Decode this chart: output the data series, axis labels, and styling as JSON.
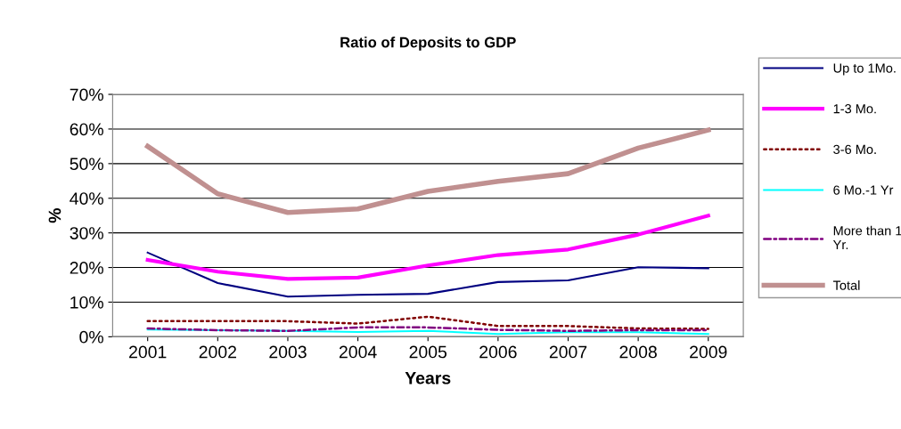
{
  "chart_data": {
    "type": "line",
    "title": "Ratio of Deposits to GDP",
    "xlabel": "Years",
    "ylabel": "%",
    "categories": [
      "2001",
      "2002",
      "2003",
      "2004",
      "2005",
      "2006",
      "2007",
      "2008",
      "2009"
    ],
    "ylim": [
      0,
      70
    ],
    "yticks": [
      {
        "value": 0,
        "label": "0%"
      },
      {
        "value": 10,
        "label": "10%"
      },
      {
        "value": 20,
        "label": "20%"
      },
      {
        "value": 30,
        "label": "30%"
      },
      {
        "value": 40,
        "label": "40%"
      },
      {
        "value": 50,
        "label": "50%"
      },
      {
        "value": 60,
        "label": "60%"
      },
      {
        "value": 70,
        "label": "70%"
      }
    ],
    "grid": "y",
    "legend": "right",
    "marker": "none",
    "series": [
      {
        "name": "Up to 1Mo.",
        "color": "#000080",
        "line_style": "solid",
        "values": [
          24.3,
          15.5,
          11.6,
          12.1,
          12.4,
          15.8,
          16.3,
          20.1,
          19.8
        ]
      },
      {
        "name": "1-3 Mo.",
        "color": "#ff00ff",
        "line_style": "solid",
        "values": [
          22.2,
          18.8,
          16.7,
          17.1,
          20.6,
          23.6,
          25.2,
          29.5,
          35.0
        ]
      },
      {
        "name": "3-6 Mo.",
        "color": "#800000",
        "line_style": "dotted",
        "values": [
          4.5,
          4.5,
          4.5,
          3.8,
          5.8,
          3.1,
          3.1,
          2.4,
          2.3
        ]
      },
      {
        "name": "6 Mo.-1 Yr",
        "color": "#00ffff",
        "line_style": "solid",
        "values": [
          2.1,
          1.9,
          1.7,
          1.4,
          1.7,
          0.8,
          1.3,
          1.3,
          0.8
        ]
      },
      {
        "name": "More than 1 Yr.",
        "color": "#800080",
        "line_style": "dashdot",
        "values": [
          2.4,
          1.9,
          1.7,
          2.7,
          2.7,
          2.0,
          1.7,
          1.9,
          1.9
        ]
      },
      {
        "name": "Total",
        "color": "#c09090",
        "line_style": "solid",
        "values": [
          55.0,
          41.3,
          35.9,
          36.9,
          42.0,
          44.9,
          47.1,
          54.5,
          59.7
        ]
      }
    ]
  }
}
